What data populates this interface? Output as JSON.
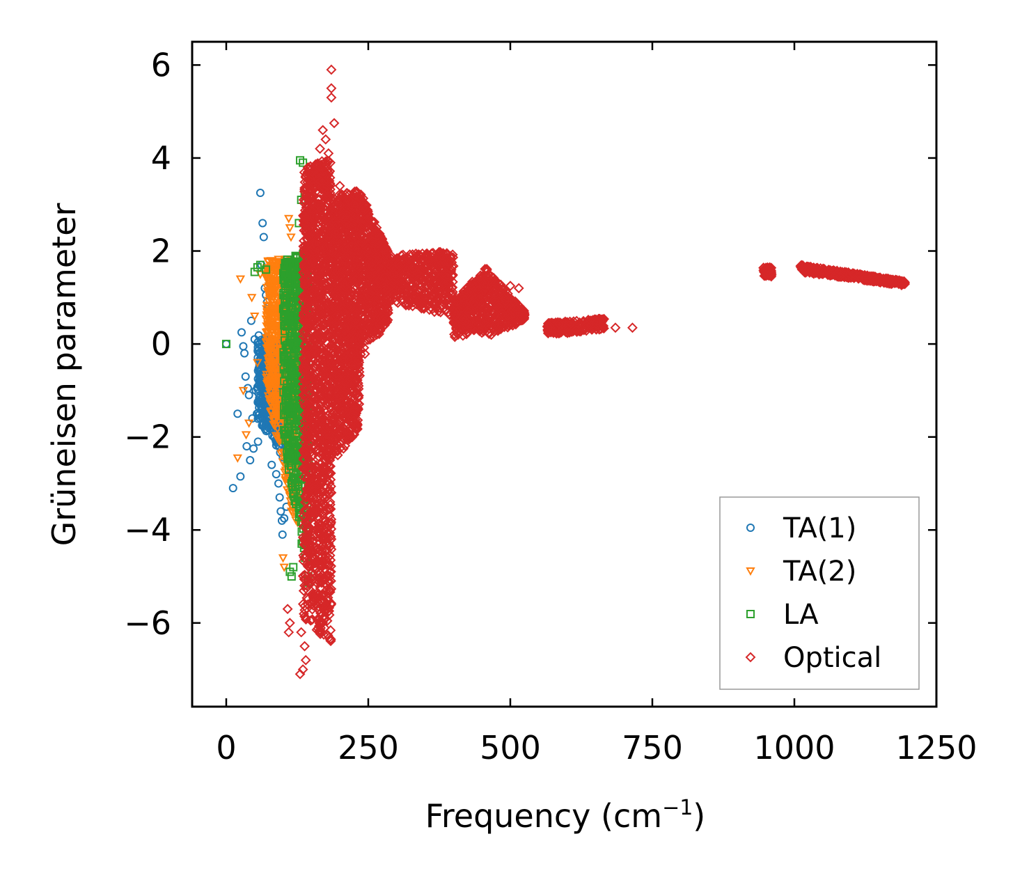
{
  "chart_data": {
    "type": "scatter",
    "title": "",
    "xlabel": "Frequency (cm",
    "xlabel_sup": "−1",
    "xlabel_end": ")",
    "ylabel": "Grüneisen parameter",
    "xlim": [
      -60,
      1250
    ],
    "ylim": [
      -7.8,
      6.5
    ],
    "xticks": [
      0,
      250,
      500,
      750,
      1000,
      1250
    ],
    "xtick_labels": [
      "0",
      "250",
      "500",
      "750",
      "1000",
      "1250"
    ],
    "yticks": [
      6,
      4,
      2,
      0,
      -2,
      -4,
      -6
    ],
    "ytick_labels": [
      "6",
      "4",
      "2",
      "0",
      "−2",
      "−4",
      "−6"
    ],
    "legend_position": "lower-right",
    "series": [
      {
        "name": "TA(1)",
        "marker": "circle",
        "color": "#1f77b4",
        "points": [
          [
            0,
            0
          ],
          [
            12,
            -3.1
          ],
          [
            20,
            -1.5
          ],
          [
            25,
            -2.85
          ],
          [
            27,
            0.25
          ],
          [
            30,
            -0.05
          ],
          [
            32,
            -0.2
          ],
          [
            34,
            -0.7
          ],
          [
            36,
            -2.2
          ],
          [
            38,
            -0.95
          ],
          [
            40,
            -1.1
          ],
          [
            42,
            -2.5
          ],
          [
            44,
            0.5
          ],
          [
            46,
            -1.6
          ],
          [
            48,
            -2.25
          ],
          [
            50,
            0.1
          ],
          [
            52,
            -1.0
          ],
          [
            54,
            -1.5
          ],
          [
            56,
            -2.1
          ],
          [
            58,
            -0.8
          ],
          [
            60,
            3.25
          ],
          [
            62,
            1.7
          ],
          [
            64,
            2.6
          ],
          [
            66,
            2.3
          ],
          [
            66,
            -0.2
          ],
          [
            68,
            1.2
          ],
          [
            70,
            1.05
          ],
          [
            72,
            0.9
          ],
          [
            74,
            0.8
          ],
          [
            76,
            1.3
          ],
          [
            78,
            0.4
          ],
          [
            80,
            -2.6
          ],
          [
            82,
            -1.4
          ],
          [
            85,
            -0.5
          ],
          [
            88,
            -2.8
          ],
          [
            90,
            -1.9
          ],
          [
            92,
            -3.0
          ],
          [
            94,
            -3.3
          ],
          [
            96,
            -3.6
          ],
          [
            98,
            -3.8
          ],
          [
            99,
            -4.1
          ],
          [
            100,
            -1.2
          ],
          [
            102,
            -3.75
          ],
          [
            104,
            -2.3
          ],
          [
            106,
            -3.5
          ],
          [
            108,
            -2.9
          ]
        ],
        "dense_regions": [
          {
            "x": [
              55,
              115
            ],
            "y_top": [
              0.2,
              0.0
            ],
            "y_bottom": [
              -1.6,
              -2.8
            ],
            "count": 500,
            "seed": 11
          }
        ]
      },
      {
        "name": "TA(2)",
        "marker": "triangle-down",
        "color": "#ff7f0e",
        "points": [
          [
            20,
            -2.45
          ],
          [
            25,
            1.4
          ],
          [
            30,
            -1.0
          ],
          [
            35,
            -1.95
          ],
          [
            40,
            -1.7
          ],
          [
            45,
            1.0
          ],
          [
            50,
            0.6
          ],
          [
            55,
            -0.4
          ],
          [
            60,
            1.5
          ],
          [
            110,
            2.7
          ],
          [
            112,
            2.5
          ],
          [
            114,
            2.3
          ],
          [
            100,
            -4.6
          ],
          [
            102,
            -4.8
          ]
        ],
        "dense_regions": [
          {
            "x": [
              70,
              130
            ],
            "y_top": [
              1.8,
              1.9
            ],
            "y_bottom": [
              -1.0,
              -4.5
            ],
            "count": 700,
            "seed": 22
          }
        ]
      },
      {
        "name": "LA",
        "marker": "square",
        "color": "#2ca02c",
        "points": [
          [
            0,
            0
          ],
          [
            50,
            1.55
          ],
          [
            55,
            1.65
          ],
          [
            60,
            1.7
          ],
          [
            70,
            1.6
          ],
          [
            130,
            3.95
          ],
          [
            135,
            3.9
          ],
          [
            138,
            3.2
          ],
          [
            132,
            3.1
          ],
          [
            128,
            2.6
          ],
          [
            115,
            -5.0
          ],
          [
            118,
            -4.8
          ],
          [
            112,
            -4.9
          ]
        ],
        "dense_regions": [
          {
            "x": [
              100,
              145
            ],
            "y_top": [
              1.8,
              2.0
            ],
            "y_bottom": [
              -2.0,
              -5.3
            ],
            "count": 600,
            "seed": 33
          }
        ]
      },
      {
        "name": "Optical",
        "marker": "diamond",
        "color": "#d62728",
        "points": [
          [
            185,
            5.9
          ],
          [
            185,
            5.5
          ],
          [
            185,
            5.3
          ],
          [
            190,
            4.75
          ],
          [
            170,
            4.6
          ],
          [
            175,
            4.4
          ],
          [
            165,
            4.2
          ],
          [
            180,
            4.1
          ],
          [
            200,
            3.4
          ],
          [
            205,
            3.2
          ],
          [
            185,
            -3.2
          ],
          [
            130,
            -7.1
          ],
          [
            135,
            -7.0
          ],
          [
            140,
            -6.8
          ],
          [
            138,
            -6.5
          ],
          [
            132,
            -6.2
          ],
          [
            110,
            -6.2
          ],
          [
            112,
            -6.0
          ],
          [
            108,
            -5.7
          ],
          [
            270,
            0.45
          ],
          [
            500,
            1.25
          ],
          [
            515,
            1.2
          ],
          [
            715,
            0.35
          ],
          [
            685,
            0.35
          ]
        ],
        "dense_regions": [
          {
            "x": [
              135,
              185
            ],
            "y_top": [
              3.8,
              4.0
            ],
            "y_bottom": [
              -5.9,
              -6.5
            ],
            "count": 1500,
            "seed": 41
          },
          {
            "x": [
              185,
              235
            ],
            "y_top": [
              3.2,
              3.3
            ],
            "y_bottom": [
              -2.6,
              -1.8
            ],
            "count": 1100,
            "seed": 42
          },
          {
            "x": [
              235,
              285
            ],
            "y_top": [
              3.3,
              2.0
            ],
            "y_bottom": [
              -0.4,
              0.5
            ],
            "count": 600,
            "seed": 43
          },
          {
            "x": [
              285,
              400
            ],
            "y_top": [
              1.9,
              2.0
            ],
            "y_bottom": [
              0.9,
              0.6
            ],
            "count": 500,
            "seed": 44
          },
          {
            "x": [
              400,
              460
            ],
            "y_top": [
              0.9,
              1.7
            ],
            "y_bottom": [
              0.15,
              0.2
            ],
            "count": 350,
            "seed": 45
          },
          {
            "x": [
              460,
              525
            ],
            "y_top": [
              1.6,
              0.7
            ],
            "y_bottom": [
              0.15,
              0.5
            ],
            "count": 300,
            "seed": 46
          },
          {
            "x": [
              565,
              665
            ],
            "y_top": [
              0.45,
              0.55
            ],
            "y_bottom": [
              0.2,
              0.3
            ],
            "count": 250,
            "seed": 47
          },
          {
            "x": [
              945,
              960
            ],
            "y_top": [
              1.65,
              1.65
            ],
            "y_bottom": [
              1.45,
              1.45
            ],
            "count": 60,
            "seed": 48
          },
          {
            "x": [
              1010,
              1195
            ],
            "y_top": [
              1.7,
              1.35
            ],
            "y_bottom": [
              1.55,
              1.25
            ],
            "count": 450,
            "seed": 49
          }
        ]
      }
    ]
  }
}
